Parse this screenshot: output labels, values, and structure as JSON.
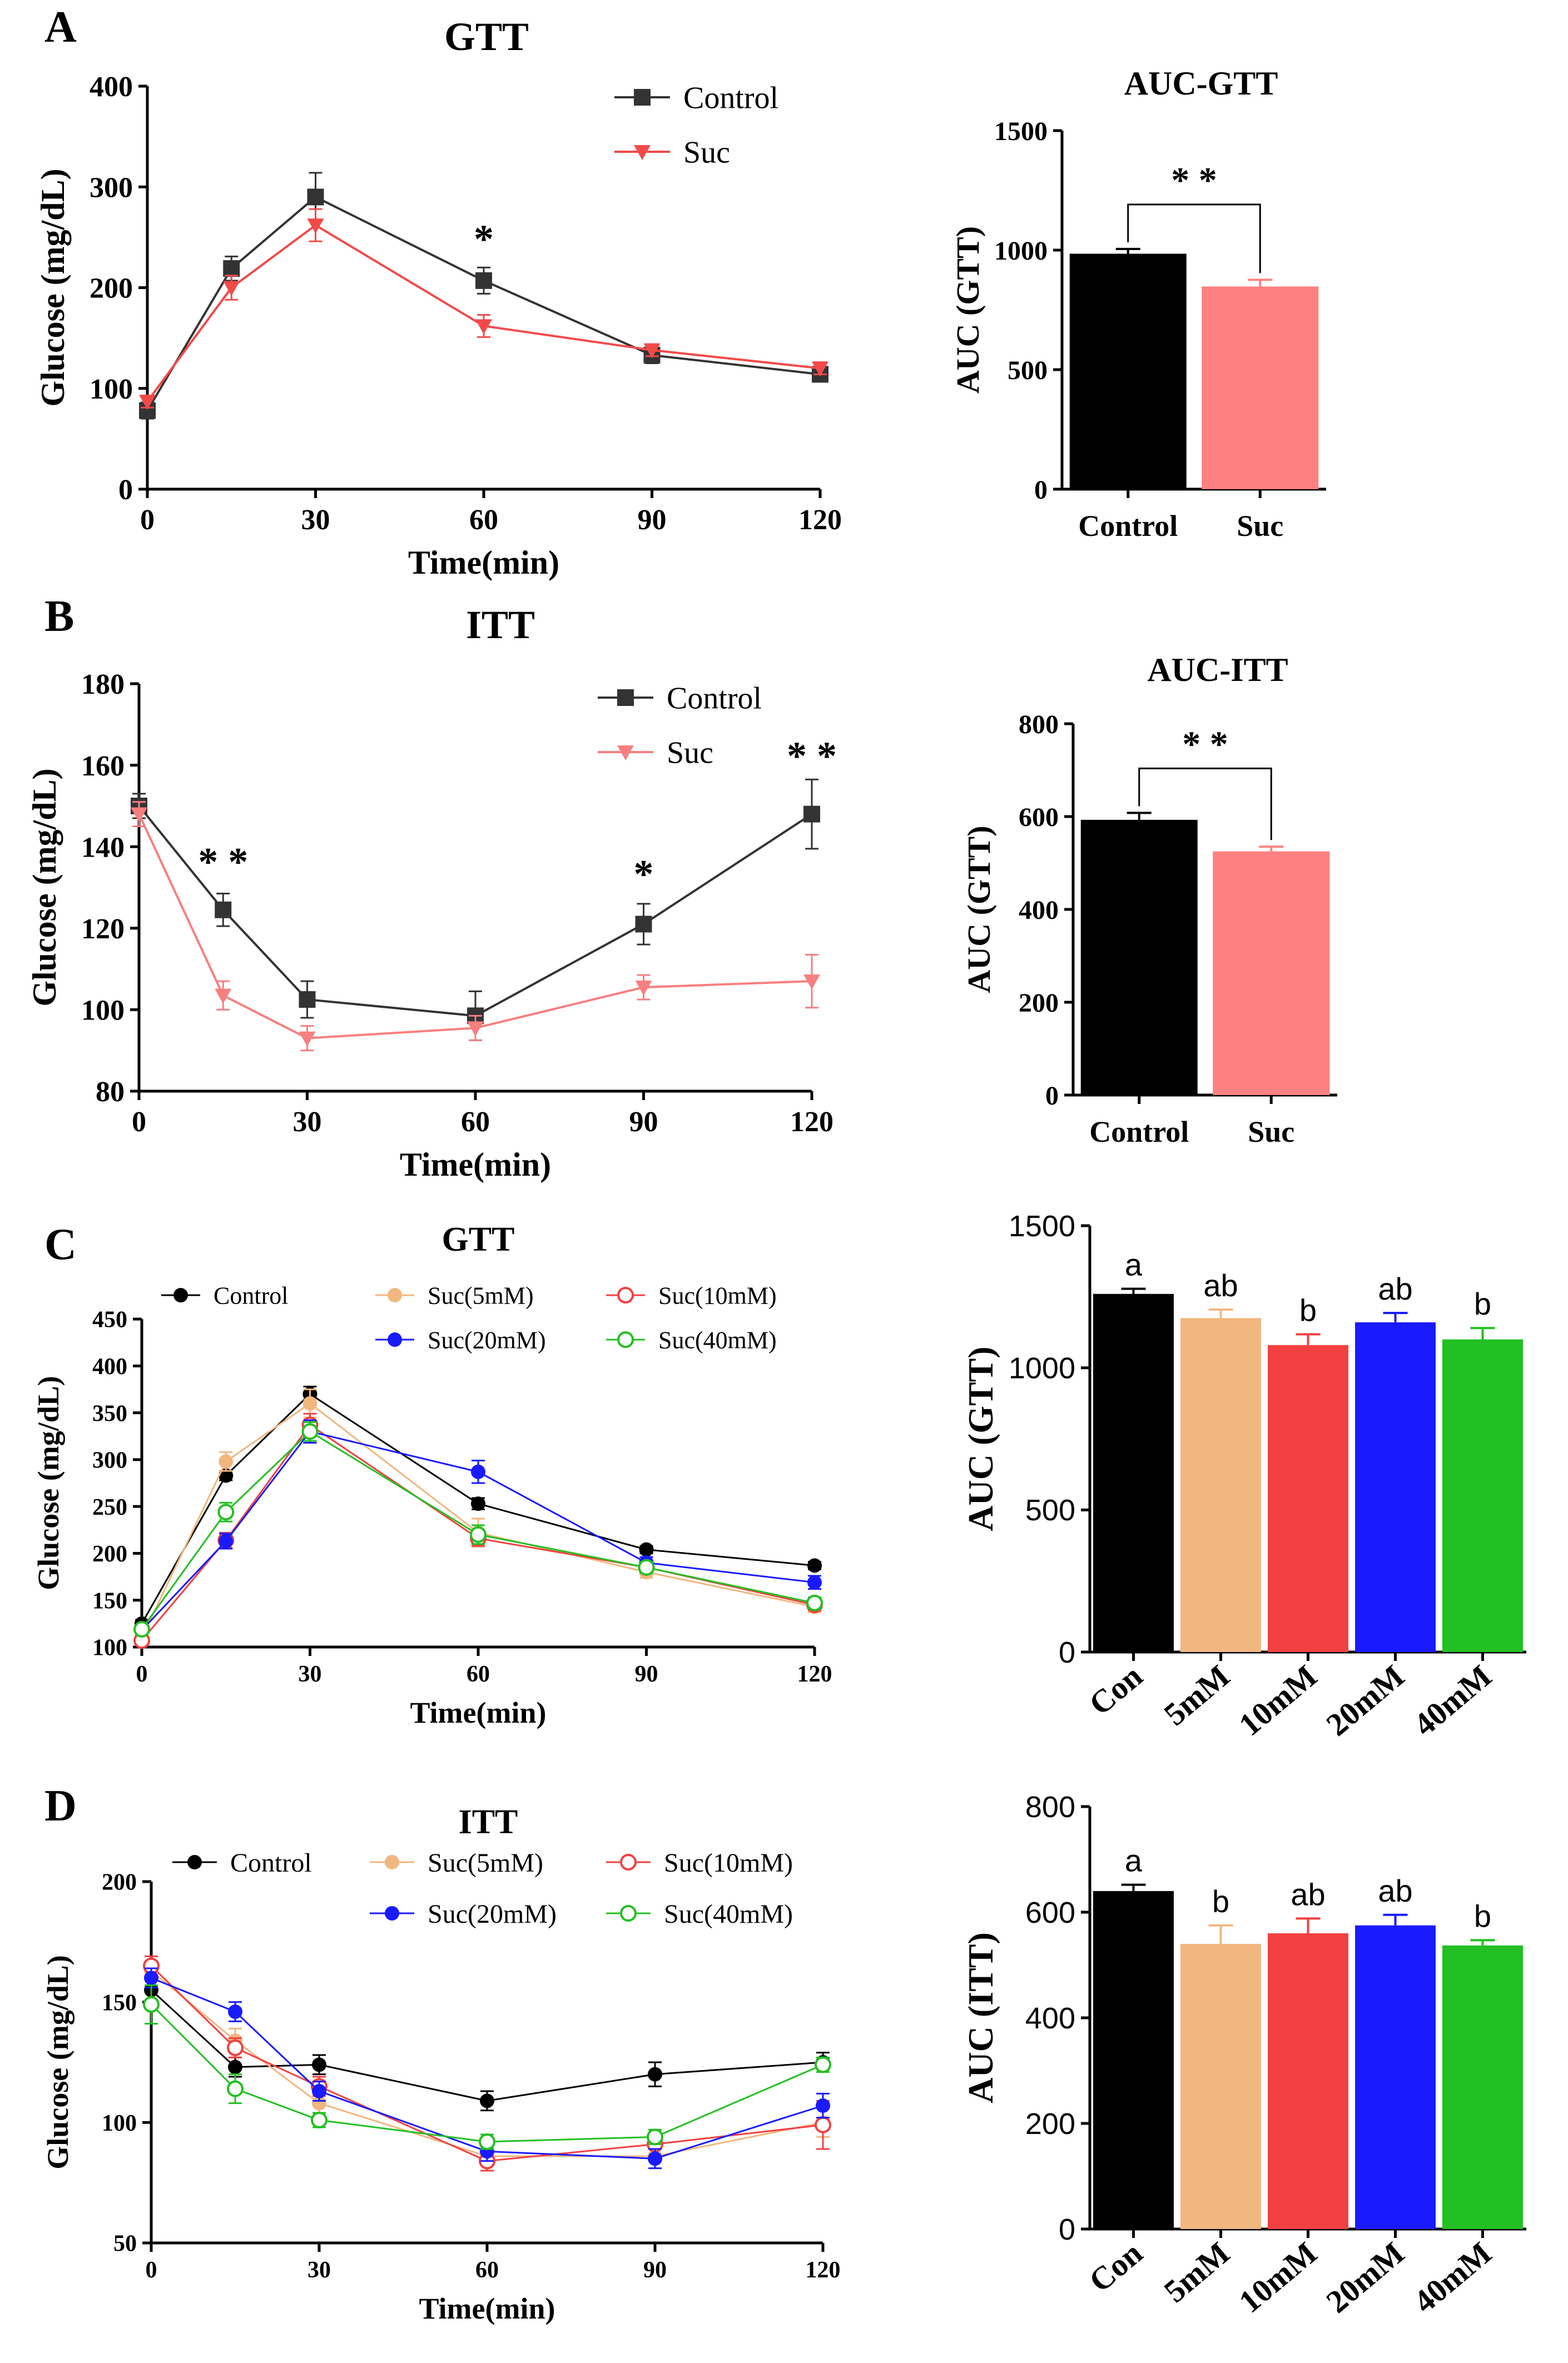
{
  "panels": {
    "A": {
      "letter": "A"
    },
    "B": {
      "letter": "B"
    },
    "C": {
      "letter": "C"
    },
    "D": {
      "letter": "D"
    }
  },
  "chart_data": [
    {
      "id": "A-line",
      "type": "line",
      "title": "GTT",
      "xlabel": "Time(min)",
      "ylabel": "Glucose (mg/dL)",
      "xlim": [
        0,
        120
      ],
      "ylim": [
        0,
        400
      ],
      "xticks": [
        "0",
        "30",
        "60",
        "90",
        "120"
      ],
      "yticks": [
        "0",
        "100",
        "200",
        "300",
        "400"
      ],
      "x": [
        0,
        15,
        30,
        60,
        90,
        120
      ],
      "series": [
        {
          "name": "Control",
          "color": "#333333",
          "marker": "square",
          "values": [
            78,
            219,
            290,
            207,
            133,
            114
          ],
          "errors": [
            8,
            12,
            24,
            13,
            8,
            6
          ]
        },
        {
          "name": "Suc",
          "color": "#f24a4a",
          "marker": "triangle-down",
          "values": [
            87,
            200,
            262,
            162,
            138,
            120
          ],
          "errors": [
            6,
            12,
            16,
            11,
            6,
            6
          ]
        }
      ],
      "annotations": [
        {
          "x": 60,
          "y": 235,
          "text": "*"
        }
      ]
    },
    {
      "id": "A-bar",
      "type": "bar",
      "title": "AUC-GTT",
      "ylabel": "AUC (GTT)",
      "ylim": [
        0,
        1500
      ],
      "yticks": [
        "0",
        "500",
        "1000",
        "1500"
      ],
      "categories": [
        "Control",
        "Suc"
      ],
      "values": [
        985,
        848
      ],
      "errors": [
        20,
        28
      ],
      "colors": [
        "#000000",
        "#ff8080"
      ],
      "significance": {
        "text": "* *",
        "pair": [
          0,
          1
        ]
      }
    },
    {
      "id": "B-line",
      "type": "line",
      "title": "ITT",
      "xlabel": "Time(min)",
      "ylabel": "Glucose (mg/dL)",
      "xlim": [
        0,
        120
      ],
      "ylim": [
        80,
        180
      ],
      "xticks": [
        "0",
        "30",
        "60",
        "90",
        "120"
      ],
      "yticks": [
        "80",
        "100",
        "120",
        "140",
        "160",
        "180"
      ],
      "x": [
        0,
        15,
        30,
        60,
        90,
        120
      ],
      "series": [
        {
          "name": "Control",
          "color": "#333333",
          "marker": "square",
          "values": [
            150,
            124.5,
            102.5,
            98.5,
            121,
            148
          ],
          "errors": [
            3,
            4,
            4.5,
            6,
            5,
            8.5
          ]
        },
        {
          "name": "Suc",
          "color": "#f77f7f",
          "marker": "triangle-down",
          "values": [
            148,
            103.5,
            93,
            95.5,
            105.5,
            107
          ],
          "errors": [
            3,
            3.5,
            3,
            3,
            3,
            6.5
          ]
        }
      ],
      "annotations": [
        {
          "x": 15,
          "y": 133,
          "text": "* *"
        },
        {
          "x": 90,
          "y": 130,
          "text": "*"
        },
        {
          "x": 120,
          "y": 159,
          "text": "* *"
        }
      ]
    },
    {
      "id": "B-bar",
      "type": "bar",
      "title": "AUC-ITT",
      "ylabel": "AUC (GTT)",
      "ylim": [
        0,
        800
      ],
      "yticks": [
        "0",
        "200",
        "400",
        "600",
        "800"
      ],
      "categories": [
        "Control",
        "Suc"
      ],
      "values": [
        593,
        525
      ],
      "errors": [
        15,
        10
      ],
      "colors": [
        "#000000",
        "#ff8080"
      ],
      "significance": {
        "text": "* *",
        "pair": [
          0,
          1
        ]
      }
    },
    {
      "id": "C-line",
      "type": "line",
      "title": "GTT",
      "xlabel": "Time(min)",
      "ylabel": "Glucose (mg/dL)",
      "xlim": [
        0,
        120
      ],
      "ylim": [
        100,
        450
      ],
      "xticks": [
        "0",
        "30",
        "60",
        "90",
        "120"
      ],
      "yticks": [
        "100",
        "150",
        "200",
        "250",
        "300",
        "350",
        "400",
        "450"
      ],
      "x": [
        0,
        15,
        30,
        60,
        90,
        120
      ],
      "series": [
        {
          "name": "Control",
          "color": "#000000",
          "marker": "filled",
          "values": [
            125,
            283,
            370,
            253,
            204,
            187
          ],
          "errors": [
            4,
            5,
            8,
            6,
            4,
            4
          ]
        },
        {
          "name": "Suc(5mM)",
          "color": "#f1b77f",
          "marker": "filled",
          "values": [
            110,
            298,
            360,
            222,
            180,
            143
          ],
          "errors": [
            5,
            10,
            15,
            15,
            6,
            6
          ]
        },
        {
          "name": "Suc(10mM)",
          "color": "#f24040",
          "marker": "open",
          "values": [
            107,
            214,
            337,
            216,
            185,
            145
          ],
          "errors": [
            4,
            8,
            12,
            8,
            6,
            6
          ]
        },
        {
          "name": "Suc(20mM)",
          "color": "#1a1aff",
          "marker": "filled",
          "values": [
            118,
            213,
            330,
            287,
            190,
            169
          ],
          "errors": [
            4,
            8,
            12,
            12,
            6,
            7
          ]
        },
        {
          "name": "Suc(40mM)",
          "color": "#22c022",
          "marker": "open",
          "values": [
            119,
            244,
            330,
            220,
            185,
            147
          ],
          "errors": [
            4,
            10,
            10,
            10,
            6,
            6
          ]
        }
      ]
    },
    {
      "id": "C-bar",
      "type": "bar",
      "ylabel": "AUC (GTT)",
      "ylim": [
        0,
        1500
      ],
      "yticks": [
        "0",
        "500",
        "1000",
        "1500"
      ],
      "categories": [
        "Con",
        "5mM",
        "10mM",
        "20mM",
        "40mM"
      ],
      "values": [
        1260,
        1175,
        1080,
        1160,
        1100
      ],
      "errors": [
        18,
        30,
        38,
        33,
        40
      ],
      "colors": [
        "#000000",
        "#f1b77f",
        "#f24040",
        "#1a1aff",
        "#22c022"
      ],
      "letters": [
        "a",
        "ab",
        "b",
        "ab",
        "b"
      ]
    },
    {
      "id": "D-line",
      "type": "line",
      "title": "ITT",
      "xlabel": "Time(min)",
      "ylabel": "Glucose (mg/dL)",
      "xlim": [
        0,
        120
      ],
      "ylim": [
        50,
        200
      ],
      "xticks": [
        "0",
        "30",
        "60",
        "90",
        "120"
      ],
      "yticks": [
        "50",
        "100",
        "150",
        "200"
      ],
      "x": [
        0,
        15,
        30,
        60,
        90,
        120
      ],
      "series": [
        {
          "name": "Control",
          "color": "#000000",
          "marker": "filled",
          "values": [
            155,
            123,
            124,
            109,
            120,
            125
          ],
          "errors": [
            6,
            4,
            4,
            4,
            5,
            4
          ]
        },
        {
          "name": "Suc(5mM)",
          "color": "#f1b77f",
          "marker": "filled",
          "values": [
            163,
            134,
            108,
            86,
            86,
            100
          ],
          "errors": [
            4,
            5,
            4,
            4,
            5,
            6
          ]
        },
        {
          "name": "Suc(10mM)",
          "color": "#f24040",
          "marker": "open",
          "values": [
            165,
            131,
            115,
            84,
            91,
            99
          ],
          "errors": [
            4,
            4,
            4,
            4,
            6,
            10
          ]
        },
        {
          "name": "Suc(20mM)",
          "color": "#1a1aff",
          "marker": "filled",
          "values": [
            160,
            146,
            113,
            88,
            85,
            107
          ],
          "errors": [
            4,
            4,
            4,
            4,
            4,
            5
          ]
        },
        {
          "name": "Suc(40mM)",
          "color": "#22c022",
          "marker": "open",
          "values": [
            149,
            114,
            101,
            92,
            94,
            124
          ],
          "errors": [
            8,
            6,
            3,
            3,
            3,
            3
          ]
        }
      ]
    },
    {
      "id": "D-bar",
      "type": "bar",
      "ylabel": "AUC (ITT)",
      "ylim": [
        0,
        800
      ],
      "yticks": [
        "0",
        "200",
        "400",
        "600",
        "800"
      ],
      "categories": [
        "Con",
        "5mM",
        "10mM",
        "20mM",
        "40mM"
      ],
      "values": [
        640,
        540,
        560,
        575,
        537
      ],
      "errors": [
        12,
        35,
        28,
        20,
        10
      ],
      "colors": [
        "#000000",
        "#f1b77f",
        "#f24040",
        "#1a1aff",
        "#22c022"
      ],
      "letters": [
        "a",
        "b",
        "ab",
        "ab",
        "b"
      ]
    }
  ]
}
